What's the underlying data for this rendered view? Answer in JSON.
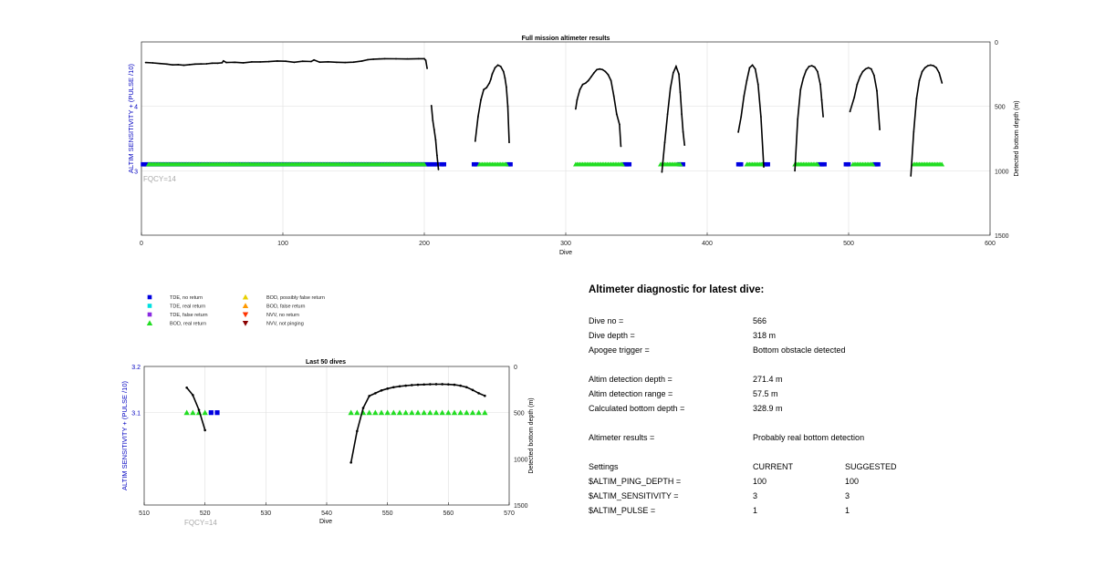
{
  "chart_data": [
    {
      "type": "scatter",
      "title": "Full mission altimeter results",
      "xlabel": "Dive",
      "ylabel_left": "ALTIM SENSITIVITY + (PULSE /10)",
      "ylabel_right": "Detected bottom depth (m)",
      "xlim": [
        0,
        600
      ],
      "ylim_left": [
        2,
        5
      ],
      "ylim_right": [
        1500,
        0
      ],
      "xticks": [
        0,
        100,
        200,
        300,
        400,
        500,
        600
      ],
      "yticks_left": [
        3,
        4
      ],
      "yticks_right": [
        0,
        500,
        1000,
        1500
      ],
      "grid": true,
      "annotation": "FQCY=14",
      "setting_level": 3.1,
      "tde_no_return": [
        [
          1,
          209
        ],
        [
          212,
          214
        ],
        [
          235,
          237
        ],
        [
          259,
          261
        ],
        [
          341,
          345
        ],
        [
          380,
          383
        ],
        [
          422,
          424
        ],
        [
          440,
          443
        ],
        [
          479,
          483
        ],
        [
          498,
          500
        ],
        [
          518,
          521
        ]
      ],
      "bod_real_return": [
        [
          5,
          200
        ],
        [
          239,
          258
        ],
        [
          307,
          340
        ],
        [
          367,
          381
        ],
        [
          428,
          439
        ],
        [
          462,
          478
        ],
        [
          503,
          517
        ],
        [
          546,
          566
        ]
      ],
      "bottom_depth_segments": [
        {
          "x": [
            3,
            8,
            13,
            18,
            22,
            26,
            30,
            34,
            38,
            42,
            46,
            50,
            54,
            57,
            58,
            60,
            66,
            72,
            78,
            84,
            90,
            96,
            102,
            108,
            114,
            120,
            122,
            126,
            132,
            138,
            144,
            150,
            156,
            160,
            164,
            168,
            172,
            180,
            188,
            196,
            200,
            201,
            202
          ],
          "y": [
            160,
            163,
            168,
            172,
            178,
            176,
            181,
            176,
            172,
            171,
            170,
            165,
            165,
            162,
            147,
            160,
            158,
            162,
            155,
            155,
            153,
            148,
            150,
            158,
            150,
            152,
            140,
            157,
            154,
            158,
            160,
            157,
            148,
            138,
            134,
            132,
            130,
            131,
            132,
            130,
            130,
            143,
            205
          ]
        },
        {
          "x": [
            205,
            206,
            207,
            208,
            209,
            210
          ],
          "y": [
            495,
            610,
            680,
            760,
            880,
            990
          ]
        },
        {
          "x": [
            236,
            238,
            240,
            242,
            244,
            246,
            247,
            248,
            250,
            252,
            254,
            256,
            257,
            258,
            259,
            260
          ],
          "y": [
            770,
            580,
            450,
            370,
            355,
            320,
            290,
            250,
            200,
            180,
            190,
            230,
            280,
            350,
            500,
            780
          ]
        },
        {
          "x": [
            307,
            308,
            310,
            312,
            314,
            316,
            318,
            320,
            322,
            324,
            326,
            328,
            330,
            332,
            334,
            336,
            338,
            339
          ],
          "y": [
            520,
            450,
            370,
            330,
            320,
            300,
            270,
            240,
            215,
            210,
            215,
            230,
            255,
            300,
            420,
            560,
            640,
            810
          ]
        },
        {
          "x": [
            368,
            370,
            372,
            374,
            376,
            378,
            380,
            381,
            382,
            383,
            384
          ],
          "y": [
            1010,
            780,
            560,
            360,
            240,
            190,
            250,
            390,
            560,
            700,
            800
          ]
        },
        {
          "x": [
            422,
            424,
            426,
            428,
            430,
            432,
            434,
            436,
            438,
            440
          ],
          "y": [
            700,
            580,
            420,
            300,
            200,
            180,
            210,
            330,
            580,
            970
          ]
        },
        {
          "x": [
            462,
            464,
            466,
            468,
            470,
            472,
            474,
            476,
            478,
            480,
            481,
            482
          ],
          "y": [
            1000,
            600,
            370,
            280,
            220,
            190,
            185,
            195,
            230,
            330,
            450,
            580
          ]
        },
        {
          "x": [
            501,
            504,
            506,
            508,
            510,
            512,
            514,
            516,
            518,
            520,
            522
          ],
          "y": [
            540,
            430,
            330,
            270,
            230,
            210,
            200,
            210,
            260,
            380,
            680
          ]
        },
        {
          "x": [
            544,
            546,
            548,
            550,
            552,
            554,
            556,
            558,
            560,
            562,
            564,
            566
          ],
          "y": [
            1040,
            700,
            440,
            300,
            230,
            200,
            185,
            180,
            185,
            200,
            240,
            318
          ]
        }
      ]
    },
    {
      "type": "scatter",
      "title": "Last 50 dives",
      "xlabel": "Dive",
      "ylabel_left": "ALTIM SENSITIVITY + (PULSE /10)",
      "ylabel_right": "Detected bottom depth (m)",
      "xlim": [
        510,
        570
      ],
      "ylim_left": [
        2.9,
        3.2
      ],
      "ylim_right": [
        1500,
        0
      ],
      "xticks": [
        510,
        520,
        530,
        540,
        550,
        560,
        570
      ],
      "yticks_left": [
        3.1,
        3.2
      ],
      "yticks_right": [
        0,
        500,
        1000,
        1500
      ],
      "grid": true,
      "annotation": "FQCY=14",
      "bod_real_return_dives": [
        517,
        518,
        519,
        520,
        544,
        545,
        546,
        547,
        548,
        549,
        550,
        551,
        552,
        553,
        554,
        555,
        556,
        557,
        558,
        559,
        560,
        561,
        562,
        563,
        564,
        565,
        566
      ],
      "bod_level": 3.1,
      "tde_no_return_dives": [
        521,
        522
      ],
      "tde_level": 3.1,
      "bottom_depth_segments": [
        {
          "x": [
            517,
            518,
            519,
            520
          ],
          "y": [
            230,
            310,
            470,
            690
          ]
        },
        {
          "x": [
            544,
            545,
            546,
            547,
            548,
            549,
            550,
            551,
            552,
            553,
            554,
            555,
            556,
            557,
            558,
            559,
            560,
            561,
            562,
            563,
            564,
            565,
            566
          ],
          "y": [
            1040,
            700,
            450,
            320,
            290,
            260,
            240,
            225,
            215,
            208,
            202,
            198,
            195,
            193,
            192,
            192,
            194,
            198,
            208,
            225,
            255,
            290,
            318
          ]
        }
      ]
    }
  ],
  "legend": {
    "items": [
      {
        "label": "TDE, no return",
        "color": "#0000e0",
        "shape": "square"
      },
      {
        "label": "TDE, real return",
        "color": "#00e0e0",
        "shape": "square"
      },
      {
        "label": "TDE, false return",
        "color": "#8a2be2",
        "shape": "square"
      },
      {
        "label": "BOD, real return",
        "color": "#22dd22",
        "shape": "triangle-up"
      },
      {
        "label": "BOD, possibly false return",
        "color": "#e8d000",
        "shape": "triangle-up"
      },
      {
        "label": "BOD, false return",
        "color": "#ff9900",
        "shape": "triangle-up"
      },
      {
        "label": "NVV, no return",
        "color": "#ff3300",
        "shape": "triangle-down"
      },
      {
        "label": "NVV, not pinging",
        "color": "#8b0000",
        "shape": "triangle-down"
      }
    ]
  },
  "diagnostic": {
    "title": "Altimeter diagnostic for latest dive:",
    "dive_no_label": "Dive no =",
    "dive_no_value": "566",
    "dive_depth_label": "Dive depth =",
    "dive_depth_value": "318 m",
    "apogee_label": "Apogee trigger =",
    "apogee_value": "Bottom obstacle detected",
    "det_depth_label": "Altim detection depth =",
    "det_depth_value": "271.4 m",
    "det_range_label": "Altim detection range =",
    "det_range_value": "57.5 m",
    "calc_depth_label": "Calculated bottom depth =",
    "calc_depth_value": "328.9 m",
    "results_label": "Altimeter results =",
    "results_value": "Probably real bottom detection",
    "settings_label": "Settings",
    "current_label": "CURRENT",
    "suggested_label": "SUGGESTED",
    "ping_label": "$ALTIM_PING_DEPTH =",
    "ping_current": "100",
    "ping_suggested": "100",
    "sens_label": "$ALTIM_SENSITIVITY =",
    "sens_current": "3",
    "sens_suggested": "3",
    "pulse_label": "$ALTIM_PULSE =",
    "pulse_current": "1",
    "pulse_suggested": "1"
  }
}
